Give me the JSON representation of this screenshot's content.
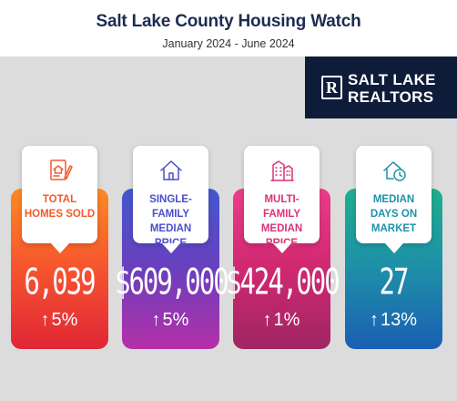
{
  "header": {
    "title": "Salt Lake County Housing Watch",
    "subtitle": "January 2024 - June 2024"
  },
  "logo": {
    "line1": "SALT LAKE",
    "line2": "REALTORS",
    "mark": "R"
  },
  "colors": {
    "navy": "#0f1c39",
    "title": "#1c2c52",
    "orange": "#f25a2c",
    "purple": "#4a4fc8",
    "pink": "#d83378",
    "teal": "#1f92a8"
  },
  "stats": [
    {
      "icon": "house-document-icon",
      "label": "TOTAL HOMES SOLD",
      "value": "6,039",
      "change": "5%",
      "direction": "up"
    },
    {
      "icon": "house-icon",
      "label": "SINGLE-FAMILY MEDIAN PRICE",
      "value": "$609,000",
      "change": "5%",
      "direction": "up"
    },
    {
      "icon": "apartment-building-icon",
      "label": "MULTI-FAMILY MEDIAN PRICE",
      "value": "$424,000",
      "change": "1%",
      "direction": "up"
    },
    {
      "icon": "house-clock-icon",
      "label": "MEDIAN DAYS ON MARKET",
      "value": "27",
      "change": "13%",
      "direction": "up"
    }
  ]
}
